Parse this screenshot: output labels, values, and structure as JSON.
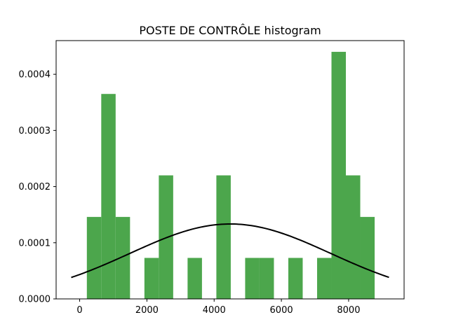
{
  "chart_data": {
    "type": "bar",
    "title": "POSTE DE CONTRÔLE histogram",
    "xlabel": "",
    "ylabel": "",
    "xlim": [
      -700,
      9650
    ],
    "ylim": [
      0,
      0.00046
    ],
    "x_ticks": [
      0,
      2000,
      4000,
      6000,
      8000
    ],
    "x_tick_labels": [
      "0",
      "2000",
      "4000",
      "6000",
      "8000"
    ],
    "y_ticks": [
      0,
      0.0001,
      0.0002,
      0.0003,
      0.0004
    ],
    "y_tick_labels": [
      "0.0000",
      "0.0001",
      "0.0002",
      "0.0003",
      "0.0004"
    ],
    "bin_edges": [
      214,
      642,
      1070,
      1498,
      1926,
      2354,
      2782,
      3210,
      3638,
      4066,
      4494,
      4922,
      5350,
      5778,
      6206,
      6634,
      7062,
      7490,
      7918,
      8346,
      8774
    ],
    "values": [
      0.000146,
      0.000365,
      0.000146,
      0,
      7.3e-05,
      0.00022,
      0,
      7.3e-05,
      0,
      0.00022,
      0,
      7.3e-05,
      7.3e-05,
      0,
      7.3e-05,
      0,
      7.3e-05,
      0.00044,
      0.00022,
      0.000146
    ],
    "bar_color": "#4ca64c",
    "curve": {
      "type": "normal_pdf",
      "mean": 4480,
      "std": 2990,
      "x_range": [
        -250,
        9200
      ],
      "color": "#000000"
    },
    "grid": false,
    "legend": "none"
  }
}
